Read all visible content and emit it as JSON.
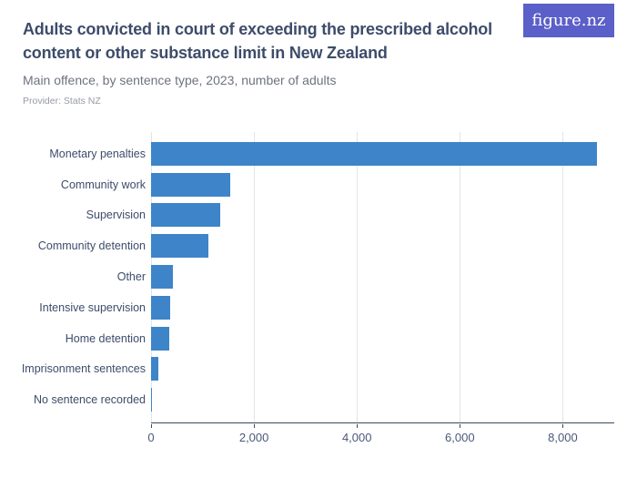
{
  "header": {
    "title": "Adults convicted in court of exceeding the prescribed alcohol content or other substance limit in New Zealand",
    "subtitle": "Main offence, by sentence type, 2023, number of adults",
    "provider": "Provider: Stats NZ",
    "logo_text": "figure.nz",
    "logo_bg": "#5b5fc8"
  },
  "chart_data": {
    "type": "bar",
    "orientation": "horizontal",
    "title": "Adults convicted in court of exceeding the prescribed alcohol content or other substance limit in New Zealand",
    "subtitle": "Main offence, by sentence type, 2023, number of adults",
    "categories": [
      "Monetary penalties",
      "Community work",
      "Supervision",
      "Community detention",
      "Other",
      "Intensive supervision",
      "Home detention",
      "Imprisonment sentences",
      "No sentence recorded"
    ],
    "values": [
      8670,
      1540,
      1350,
      1110,
      430,
      370,
      345,
      140,
      20
    ],
    "xlabel": "",
    "ylabel": "",
    "xlim": [
      0,
      9000
    ],
    "x_tick_values": [
      0,
      2000,
      4000,
      6000,
      8000
    ],
    "x_ticks": [
      "0",
      "2,000",
      "4,000",
      "6,000",
      "8,000"
    ],
    "grid": true,
    "legend": false,
    "bar_color": "#3d85c8",
    "axis_color": "#3b4960",
    "gridline_color": "#e4e4e7"
  }
}
